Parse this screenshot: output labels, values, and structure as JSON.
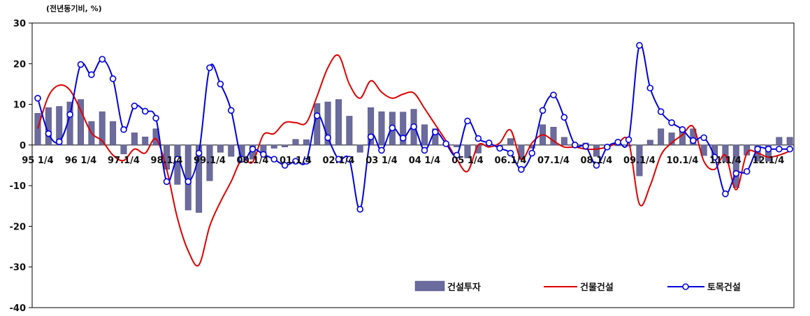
{
  "colors": {
    "bar": "#6b6b9e",
    "bar_stroke": "#4a4a7a",
    "building_line": "#e00000",
    "civil_line": "#0000e0",
    "marker_fill": "#ffffff"
  },
  "chart_data": {
    "type": "bar+line",
    "unit_label": "(전년동기비, %)",
    "ylim": [
      -40,
      30
    ],
    "yticks": [
      30,
      20,
      10,
      0,
      -10,
      -20,
      -30,
      -40
    ],
    "x_count": 71,
    "xtick_labels": [
      {
        "i": 0,
        "label": "95 1/4"
      },
      {
        "i": 4,
        "label": "96 1/4"
      },
      {
        "i": 8,
        "label": "97.1/4"
      },
      {
        "i": 12,
        "label": "98.1/4"
      },
      {
        "i": 16,
        "label": "99.1/4"
      },
      {
        "i": 20,
        "label": "00.1/4"
      },
      {
        "i": 24,
        "label": "01.1/4"
      },
      {
        "i": 28,
        "label": "02.1/4"
      },
      {
        "i": 32,
        "label": "03 1/4"
      },
      {
        "i": 36,
        "label": "04 1/4"
      },
      {
        "i": 40,
        "label": "05 1/4"
      },
      {
        "i": 44,
        "label": "06.1/4"
      },
      {
        "i": 48,
        "label": "07.1/4"
      },
      {
        "i": 52,
        "label": "08.1/4"
      },
      {
        "i": 56,
        "label": "09.1/4"
      },
      {
        "i": 60,
        "label": "10.1/4"
      },
      {
        "i": 64,
        "label": "11.1/4"
      },
      {
        "i": 68,
        "label": "12.1/4"
      }
    ],
    "legend_position": "bottom-right",
    "series": [
      {
        "name": "건설투자",
        "kind": "bar",
        "values": [
          7.8,
          9.2,
          9.5,
          10.6,
          11.2,
          5.8,
          8.2,
          5.8,
          -2.2,
          3.0,
          2.0,
          4.0,
          -6.0,
          -9.7,
          -16.0,
          -16.6,
          -8.8,
          -1.8,
          -2.8,
          -4.2,
          -3.5,
          -2.0,
          -0.8,
          -0.5,
          1.4,
          1.3,
          10.2,
          10.6,
          11.2,
          7.1,
          -1.8,
          9.2,
          8.2,
          8.1,
          8.1,
          8.8,
          5.0,
          4.0,
          0.5,
          -0.5,
          -3.2,
          -2.0,
          0.5,
          -1.0,
          1.6,
          -3.6,
          -0.8,
          5.0,
          4.4,
          1.9,
          0.4,
          0.5,
          -2.8,
          -1.0,
          -0.2,
          -0.3,
          -7.6,
          1.2,
          4.0,
          3.0,
          3.8,
          4.0,
          -2.6,
          -3.0,
          -4.2,
          -10.5,
          -2.5,
          -4.0,
          -4.0,
          1.9,
          1.9
        ]
      },
      {
        "name": "건물건설",
        "kind": "line",
        "values": [
          4.0,
          12.0,
          14.7,
          13.5,
          8.5,
          3.0,
          1.0,
          -2.5,
          -3.8,
          -1.0,
          -2.0,
          1.5,
          -6.0,
          -18.0,
          -26.0,
          -29.5,
          -20.0,
          -14.0,
          -9.0,
          -3.5,
          -4.2,
          2.5,
          2.8,
          5.5,
          5.5,
          5.5,
          12.0,
          19.0,
          22.0,
          15.0,
          11.5,
          15.8,
          13.0,
          11.5,
          12.5,
          12.8,
          9.0,
          5.0,
          1.0,
          -3.5,
          -6.5,
          0.0,
          -0.5,
          0.5,
          3.7,
          -3.5,
          0.5,
          2.5,
          1.0,
          -0.5,
          -0.5,
          -1.0,
          -1.0,
          -0.5,
          0.5,
          0.8,
          -14.5,
          -10.0,
          -2.5,
          0.5,
          2.5,
          4.5,
          -4.0,
          -6.0,
          -2.5,
          -11.0,
          -2.0,
          -2.0,
          -3.0,
          -2.5,
          -1.5
        ]
      },
      {
        "name": "토목건설",
        "kind": "line",
        "values": [
          11.5,
          2.8,
          0.8,
          7.5,
          19.8,
          17.3,
          21.1,
          16.3,
          3.8,
          9.6,
          8.3,
          6.6,
          -9.0,
          -3.5,
          -9.0,
          -2.0,
          19.0,
          15.0,
          8.5,
          -3.5,
          -1.0,
          -2.3,
          -3.5,
          -5.0,
          -4.0,
          -4.0,
          7.2,
          1.8,
          -3.5,
          -3.5,
          -15.8,
          2.0,
          -1.3,
          4.2,
          1.7,
          4.5,
          -1.3,
          3.2,
          0.3,
          -2.5,
          5.9,
          1.6,
          0.5,
          -0.8,
          -2.0,
          -6.0,
          -2.0,
          8.5,
          12.3,
          6.8,
          0.0,
          -0.3,
          -5.0,
          -0.5,
          0.7,
          1.3,
          24.5,
          14.0,
          8.2,
          5.5,
          3.8,
          1.1,
          1.8,
          -3.0,
          -12.0,
          -7.0,
          -6.5,
          -1.0,
          -1.0,
          -1.0,
          -1.0
        ]
      }
    ]
  }
}
